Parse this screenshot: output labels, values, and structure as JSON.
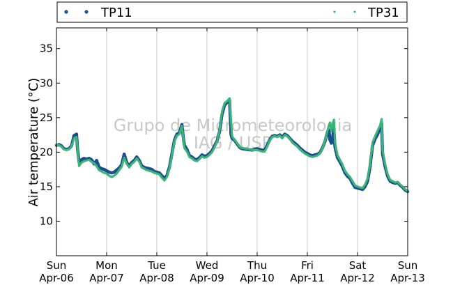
{
  "chart_data": {
    "type": "scatter",
    "ylabel": "Air temperature (°C)",
    "xlabel": "",
    "ylim": [
      5,
      38
    ],
    "xlim": [
      0,
      7
    ],
    "yticks": [
      10,
      15,
      20,
      25,
      30,
      35
    ],
    "xticks": [
      {
        "x": 0,
        "line1": "Sun",
        "line2": "Apr-06"
      },
      {
        "x": 1,
        "line1": "Mon",
        "line2": "Apr-07"
      },
      {
        "x": 2,
        "line1": "Tue",
        "line2": "Apr-08"
      },
      {
        "x": 3,
        "line1": "Wed",
        "line2": "Apr-09"
      },
      {
        "x": 4,
        "line1": "Thu",
        "line2": "Apr-10"
      },
      {
        "x": 5,
        "line1": "Fri",
        "line2": "Apr-11"
      },
      {
        "x": 6,
        "line1": "Sat",
        "line2": "Apr-12"
      },
      {
        "x": 7,
        "line1": "Sun",
        "line2": "Apr-13"
      }
    ],
    "grid": "vertical",
    "legend_placement": "top",
    "watermark": [
      "Grupo de Micrometeorologia",
      "IAG / USP"
    ],
    "series": [
      {
        "name": "TP11",
        "color": "#1a4f8f",
        "marker": "dot-large",
        "points": [
          [
            0.0,
            21.0
          ],
          [
            0.05,
            21.1
          ],
          [
            0.1,
            20.9
          ],
          [
            0.15,
            20.5
          ],
          [
            0.2,
            20.4
          ],
          [
            0.25,
            20.5
          ],
          [
            0.3,
            20.9
          ],
          [
            0.35,
            22.4
          ],
          [
            0.4,
            22.6
          ],
          [
            0.42,
            20.5
          ],
          [
            0.45,
            18.6
          ],
          [
            0.5,
            18.9
          ],
          [
            0.55,
            19.1
          ],
          [
            0.6,
            19.0
          ],
          [
            0.65,
            19.1
          ],
          [
            0.7,
            18.9
          ],
          [
            0.75,
            18.3
          ],
          [
            0.8,
            18.8
          ],
          [
            0.85,
            17.8
          ],
          [
            0.9,
            17.6
          ],
          [
            0.95,
            17.5
          ],
          [
            1.0,
            17.3
          ],
          [
            1.05,
            17.1
          ],
          [
            1.1,
            17.0
          ],
          [
            1.15,
            17.1
          ],
          [
            1.2,
            17.4
          ],
          [
            1.25,
            17.7
          ],
          [
            1.3,
            18.2
          ],
          [
            1.35,
            19.7
          ],
          [
            1.4,
            18.5
          ],
          [
            1.45,
            18.0
          ],
          [
            1.5,
            18.5
          ],
          [
            1.55,
            18.8
          ],
          [
            1.6,
            19.3
          ],
          [
            1.65,
            18.8
          ],
          [
            1.7,
            18.0
          ],
          [
            1.75,
            17.8
          ],
          [
            1.8,
            17.7
          ],
          [
            1.85,
            17.6
          ],
          [
            1.9,
            17.5
          ],
          [
            1.95,
            17.2
          ],
          [
            2.0,
            17.1
          ],
          [
            2.05,
            17.0
          ],
          [
            2.1,
            16.6
          ],
          [
            2.15,
            16.2
          ],
          [
            2.2,
            16.6
          ],
          [
            2.25,
            17.8
          ],
          [
            2.3,
            19.7
          ],
          [
            2.35,
            21.7
          ],
          [
            2.4,
            22.6
          ],
          [
            2.45,
            22.8
          ],
          [
            2.5,
            24.0
          ],
          [
            2.53,
            22.0
          ],
          [
            2.55,
            21.0
          ],
          [
            2.6,
            20.4
          ],
          [
            2.65,
            19.5
          ],
          [
            2.7,
            19.3
          ],
          [
            2.75,
            19.0
          ],
          [
            2.8,
            18.9
          ],
          [
            2.85,
            19.2
          ],
          [
            2.9,
            19.6
          ],
          [
            2.95,
            19.4
          ],
          [
            3.0,
            19.5
          ],
          [
            3.05,
            19.8
          ],
          [
            3.1,
            20.2
          ],
          [
            3.15,
            20.9
          ],
          [
            3.2,
            21.6
          ],
          [
            3.25,
            23.0
          ],
          [
            3.3,
            25.5
          ],
          [
            3.35,
            26.8
          ],
          [
            3.4,
            27.2
          ],
          [
            3.45,
            27.5
          ],
          [
            3.48,
            22.5
          ],
          [
            3.5,
            22.0
          ],
          [
            3.55,
            21.7
          ],
          [
            3.6,
            21.2
          ],
          [
            3.65,
            20.7
          ],
          [
            3.7,
            20.5
          ],
          [
            3.8,
            20.4
          ],
          [
            3.9,
            20.3
          ],
          [
            4.0,
            20.5
          ],
          [
            4.05,
            20.4
          ],
          [
            4.1,
            20.3
          ],
          [
            4.15,
            20.3
          ],
          [
            4.2,
            21.0
          ],
          [
            4.25,
            21.8
          ],
          [
            4.3,
            22.3
          ],
          [
            4.35,
            22.4
          ],
          [
            4.4,
            22.3
          ],
          [
            4.45,
            22.5
          ],
          [
            4.5,
            22.2
          ],
          [
            4.55,
            22.6
          ],
          [
            4.6,
            22.4
          ],
          [
            4.65,
            22.0
          ],
          [
            4.7,
            21.6
          ],
          [
            4.75,
            21.3
          ],
          [
            4.8,
            21.0
          ],
          [
            4.85,
            20.6
          ],
          [
            4.9,
            20.3
          ],
          [
            4.95,
            20.0
          ],
          [
            5.0,
            19.8
          ],
          [
            5.05,
            19.6
          ],
          [
            5.1,
            19.5
          ],
          [
            5.15,
            19.6
          ],
          [
            5.2,
            19.7
          ],
          [
            5.25,
            19.9
          ],
          [
            5.3,
            20.6
          ],
          [
            5.35,
            21.5
          ],
          [
            5.4,
            22.9
          ],
          [
            5.43,
            23.2
          ],
          [
            5.45,
            21.8
          ],
          [
            5.48,
            21.3
          ],
          [
            5.5,
            22.0
          ],
          [
            5.53,
            23.4
          ],
          [
            5.55,
            20.8
          ],
          [
            5.6,
            19.2
          ],
          [
            5.65,
            18.6
          ],
          [
            5.7,
            17.9
          ],
          [
            5.75,
            17.0
          ],
          [
            5.8,
            16.5
          ],
          [
            5.85,
            16.2
          ],
          [
            5.9,
            15.5
          ],
          [
            5.95,
            14.9
          ],
          [
            6.0,
            14.8
          ],
          [
            6.05,
            14.7
          ],
          [
            6.1,
            14.6
          ],
          [
            6.15,
            15.0
          ],
          [
            6.2,
            15.8
          ],
          [
            6.25,
            17.9
          ],
          [
            6.3,
            21.0
          ],
          [
            6.35,
            21.9
          ],
          [
            6.4,
            22.6
          ],
          [
            6.45,
            23.4
          ],
          [
            6.48,
            24.2
          ],
          [
            6.5,
            19.7
          ],
          [
            6.55,
            17.9
          ],
          [
            6.6,
            16.5
          ],
          [
            6.65,
            15.8
          ],
          [
            6.7,
            15.6
          ],
          [
            6.75,
            15.5
          ],
          [
            6.8,
            15.6
          ],
          [
            6.85,
            15.2
          ],
          [
            6.9,
            14.9
          ],
          [
            6.95,
            14.5
          ],
          [
            7.0,
            14.3
          ]
        ]
      },
      {
        "name": "TP31",
        "color": "#3cb478",
        "marker": "dot-small",
        "points": [
          [
            0.0,
            21.1
          ],
          [
            0.05,
            21.0
          ],
          [
            0.1,
            20.8
          ],
          [
            0.15,
            20.4
          ],
          [
            0.2,
            20.3
          ],
          [
            0.25,
            20.4
          ],
          [
            0.3,
            20.8
          ],
          [
            0.35,
            22.0
          ],
          [
            0.4,
            22.2
          ],
          [
            0.45,
            18.0
          ],
          [
            0.5,
            18.5
          ],
          [
            0.55,
            18.7
          ],
          [
            0.6,
            18.8
          ],
          [
            0.65,
            18.9
          ],
          [
            0.7,
            18.6
          ],
          [
            0.75,
            18.4
          ],
          [
            0.8,
            18.0
          ],
          [
            0.85,
            17.4
          ],
          [
            0.9,
            17.2
          ],
          [
            0.95,
            17.0
          ],
          [
            1.0,
            16.9
          ],
          [
            1.05,
            16.6
          ],
          [
            1.1,
            16.4
          ],
          [
            1.15,
            16.6
          ],
          [
            1.2,
            16.9
          ],
          [
            1.25,
            17.4
          ],
          [
            1.3,
            17.9
          ],
          [
            1.35,
            19.2
          ],
          [
            1.4,
            18.3
          ],
          [
            1.45,
            17.8
          ],
          [
            1.5,
            18.3
          ],
          [
            1.55,
            18.6
          ],
          [
            1.6,
            19.1
          ],
          [
            1.65,
            18.6
          ],
          [
            1.7,
            17.8
          ],
          [
            1.75,
            17.6
          ],
          [
            1.8,
            17.4
          ],
          [
            1.85,
            17.3
          ],
          [
            1.9,
            17.2
          ],
          [
            1.95,
            17.0
          ],
          [
            2.0,
            16.9
          ],
          [
            2.05,
            16.8
          ],
          [
            2.1,
            16.3
          ],
          [
            2.15,
            15.9
          ],
          [
            2.2,
            16.4
          ],
          [
            2.25,
            17.6
          ],
          [
            2.3,
            19.5
          ],
          [
            2.35,
            21.5
          ],
          [
            2.4,
            22.4
          ],
          [
            2.45,
            22.6
          ],
          [
            2.5,
            23.8
          ],
          [
            2.55,
            20.6
          ],
          [
            2.6,
            20.1
          ],
          [
            2.65,
            19.3
          ],
          [
            2.7,
            19.1
          ],
          [
            2.75,
            18.8
          ],
          [
            2.8,
            18.7
          ],
          [
            2.85,
            19.0
          ],
          [
            2.9,
            19.4
          ],
          [
            2.95,
            19.2
          ],
          [
            3.0,
            19.3
          ],
          [
            3.05,
            19.6
          ],
          [
            3.1,
            20.0
          ],
          [
            3.15,
            20.7
          ],
          [
            3.2,
            21.5
          ],
          [
            3.25,
            23.2
          ],
          [
            3.3,
            25.9
          ],
          [
            3.35,
            27.1
          ],
          [
            3.4,
            27.4
          ],
          [
            3.45,
            27.8
          ],
          [
            3.5,
            22.3
          ],
          [
            3.55,
            21.8
          ],
          [
            3.6,
            21.3
          ],
          [
            3.65,
            20.8
          ],
          [
            3.7,
            20.6
          ],
          [
            3.8,
            20.5
          ],
          [
            3.9,
            20.3
          ],
          [
            4.0,
            20.3
          ],
          [
            4.05,
            20.2
          ],
          [
            4.1,
            20.1
          ],
          [
            4.15,
            20.1
          ],
          [
            4.2,
            20.8
          ],
          [
            4.25,
            21.7
          ],
          [
            4.3,
            22.2
          ],
          [
            4.35,
            22.3
          ],
          [
            4.4,
            22.2
          ],
          [
            4.45,
            22.4
          ],
          [
            4.5,
            22.0
          ],
          [
            4.55,
            22.5
          ],
          [
            4.6,
            22.3
          ],
          [
            4.65,
            21.9
          ],
          [
            4.7,
            21.4
          ],
          [
            4.75,
            21.1
          ],
          [
            4.8,
            20.8
          ],
          [
            4.85,
            20.4
          ],
          [
            4.9,
            20.1
          ],
          [
            4.95,
            19.8
          ],
          [
            5.0,
            19.6
          ],
          [
            5.05,
            19.4
          ],
          [
            5.1,
            19.3
          ],
          [
            5.15,
            19.4
          ],
          [
            5.2,
            19.5
          ],
          [
            5.25,
            19.8
          ],
          [
            5.3,
            20.5
          ],
          [
            5.35,
            21.6
          ],
          [
            5.4,
            23.1
          ],
          [
            5.45,
            24.3
          ],
          [
            5.48,
            23.0
          ],
          [
            5.5,
            24.0
          ],
          [
            5.53,
            24.7
          ],
          [
            5.55,
            21.5
          ],
          [
            5.6,
            19.6
          ],
          [
            5.65,
            18.9
          ],
          [
            5.7,
            18.2
          ],
          [
            5.75,
            17.3
          ],
          [
            5.8,
            16.8
          ],
          [
            5.85,
            16.4
          ],
          [
            5.9,
            15.8
          ],
          [
            5.95,
            15.2
          ],
          [
            6.0,
            15.0
          ],
          [
            6.05,
            14.9
          ],
          [
            6.1,
            14.8
          ],
          [
            6.15,
            15.3
          ],
          [
            6.2,
            16.2
          ],
          [
            6.25,
            18.3
          ],
          [
            6.3,
            21.4
          ],
          [
            6.35,
            22.3
          ],
          [
            6.4,
            23.1
          ],
          [
            6.45,
            23.9
          ],
          [
            6.48,
            24.8
          ],
          [
            6.5,
            20.3
          ],
          [
            6.55,
            18.3
          ],
          [
            6.6,
            16.8
          ],
          [
            6.65,
            16.0
          ],
          [
            6.7,
            15.8
          ],
          [
            6.75,
            15.6
          ],
          [
            6.8,
            15.7
          ],
          [
            6.85,
            15.3
          ],
          [
            6.9,
            15.0
          ],
          [
            6.95,
            14.6
          ],
          [
            7.0,
            14.4
          ]
        ]
      }
    ]
  }
}
